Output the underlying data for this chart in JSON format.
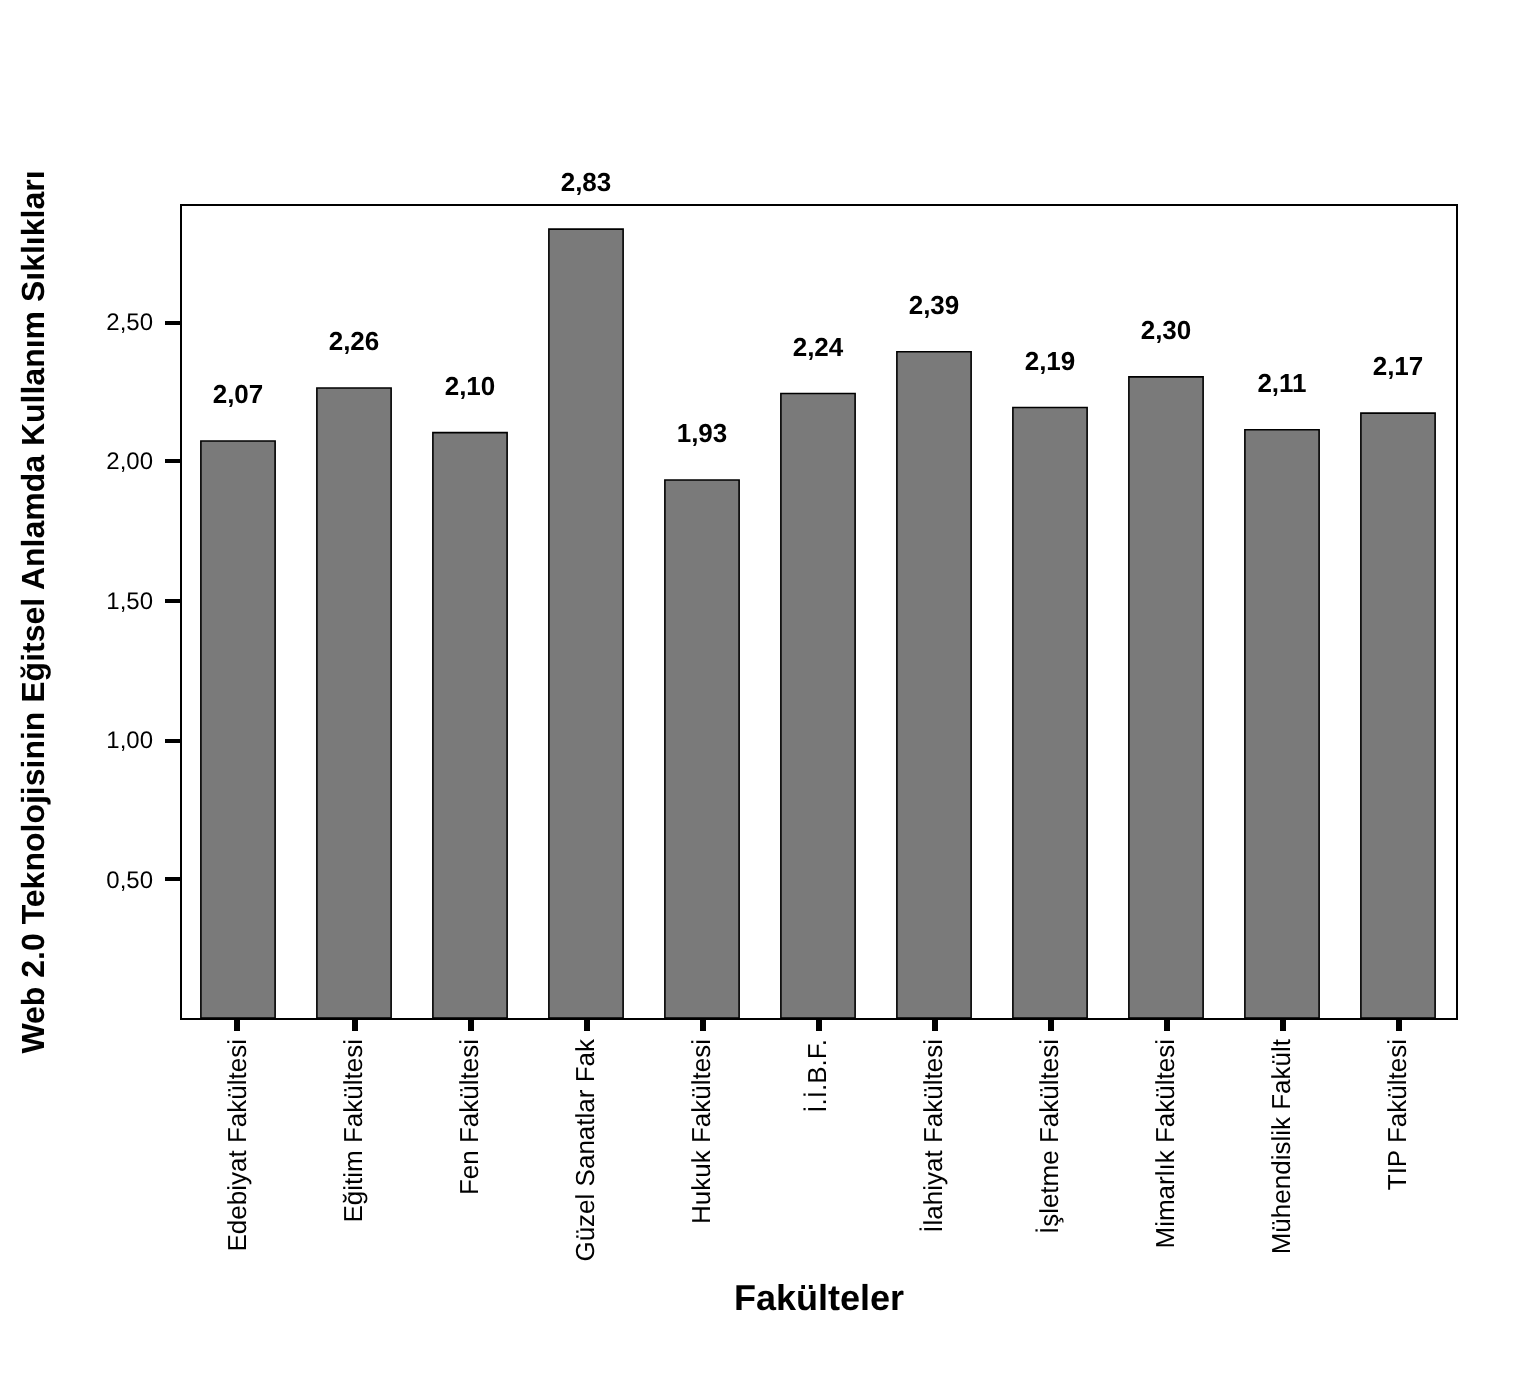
{
  "chart_data": {
    "type": "bar",
    "xlabel": "Fakülteler",
    "ylabel": "Web 2.0 Teknolojisinin Eğitsel Anlamda Kullanım Sıklıkları",
    "categories": [
      "Edebiyat Fakültesi",
      "Eğitim Fakültesi",
      "Fen Fakültesi",
      "Güzel Sanatlar Fak",
      "Hukuk Fakültesi",
      "İ.İ.B.F.",
      "İlahiyat Fakültesi",
      "İşletme Fakültesi",
      "Mimarlık Fakültesi",
      "Mühendislik Fakült",
      "TIP Fakültesi"
    ],
    "values": [
      2.07,
      2.26,
      2.1,
      2.83,
      1.93,
      2.24,
      2.39,
      2.19,
      2.3,
      2.11,
      2.17
    ],
    "value_labels": [
      "2,07",
      "2,26",
      "2,10",
      "2,83",
      "1,93",
      "2,24",
      "2,39",
      "2,19",
      "2,30",
      "2,11",
      "2,17"
    ],
    "color": "#7a7a7a",
    "ylim": [
      0,
      2.92
    ],
    "yticks": [
      {
        "value": 0.5,
        "label": "0,50"
      },
      {
        "value": 1,
        "label": "1,00"
      },
      {
        "value": 1.5,
        "label": "1,50"
      },
      {
        "value": 2,
        "label": "2,00"
      },
      {
        "value": 2.5,
        "label": "2,50"
      }
    ],
    "grid": false
  }
}
